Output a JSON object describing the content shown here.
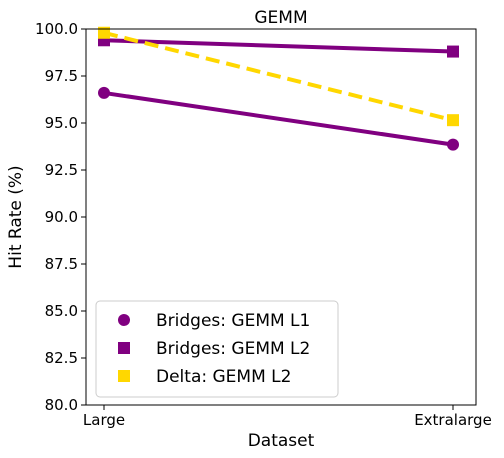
{
  "chart_data": {
    "type": "line",
    "title": "GEMM",
    "xlabel": "Dataset",
    "ylabel": "Hit Rate (%)",
    "categories": [
      "Large",
      "Extralarge"
    ],
    "ylim": [
      80.0,
      100.0
    ],
    "yticks": [
      "80.0",
      "82.5",
      "85.0",
      "87.5",
      "90.0",
      "92.5",
      "95.0",
      "97.5",
      "100.0"
    ],
    "grid": false,
    "legend_position": "bottom-left",
    "series": [
      {
        "name": "Bridges: GEMM L1",
        "values": [
          96.6,
          93.85
        ],
        "color": "#800080",
        "marker": "circle",
        "line_style": "solid"
      },
      {
        "name": "Bridges: GEMM L2",
        "values": [
          99.4,
          98.8
        ],
        "color": "#800080",
        "marker": "square",
        "line_style": "solid"
      },
      {
        "name": "Delta: GEMM L2",
        "values": [
          99.8,
          95.15
        ],
        "color": "#FFD700",
        "marker": "square",
        "line_style": "dashed"
      }
    ]
  }
}
